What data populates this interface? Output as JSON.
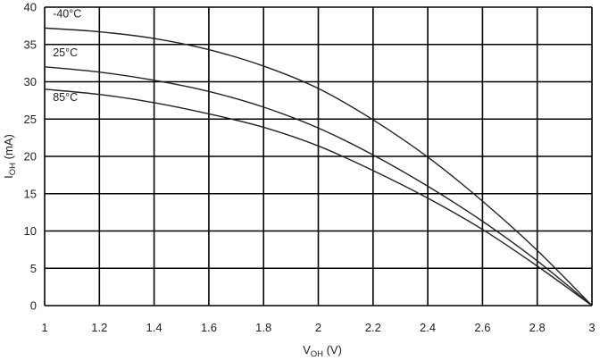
{
  "colors": {
    "grid": "#000000",
    "curve": "#222222",
    "text": "#222222",
    "background": "#ffffff"
  },
  "chart_data": {
    "type": "line",
    "xlabel": {
      "main": "V",
      "sub": "OH",
      "unit": " (V)"
    },
    "ylabel": {
      "main": "I",
      "sub": "OH",
      "unit": " (mA)"
    },
    "xlim": [
      1,
      3
    ],
    "ylim": [
      0,
      40
    ],
    "x_ticks": [
      1,
      1.2,
      1.4,
      1.6,
      1.8,
      2,
      2.2,
      2.4,
      2.6,
      2.8,
      3
    ],
    "x_tick_labels": [
      "1",
      "1.2",
      "1.4",
      "1.6",
      "1.8",
      "2",
      "2.2",
      "2.4",
      "2.6",
      "2.8",
      "3"
    ],
    "y_ticks": [
      0,
      5,
      10,
      15,
      20,
      25,
      30,
      35,
      40
    ],
    "y_tick_labels": [
      "0",
      "5",
      "10",
      "15",
      "20",
      "25",
      "30",
      "35",
      "40"
    ],
    "grid": true,
    "series": [
      {
        "name": "-40°C",
        "label_at": [
          1.03,
          38.6
        ],
        "x": [
          1.0,
          1.2,
          1.4,
          1.6,
          1.8,
          2.0,
          2.2,
          2.4,
          2.6,
          2.8,
          3.0
        ],
        "y": [
          37.2,
          36.7,
          35.8,
          34.3,
          32.1,
          29.1,
          24.9,
          19.9,
          14.0,
          7.4,
          0.0
        ]
      },
      {
        "name": "25°C",
        "label_at": [
          1.03,
          33.4
        ],
        "x": [
          1.0,
          1.2,
          1.4,
          1.6,
          1.8,
          2.0,
          2.2,
          2.4,
          2.6,
          2.8,
          3.0
        ],
        "y": [
          32.0,
          31.3,
          30.2,
          28.7,
          26.6,
          23.8,
          20.2,
          16.0,
          11.3,
          6.0,
          0.0
        ]
      },
      {
        "name": "85°C",
        "label_at": [
          1.03,
          27.4
        ],
        "x": [
          1.0,
          1.2,
          1.4,
          1.6,
          1.8,
          2.0,
          2.2,
          2.4,
          2.6,
          2.8,
          3.0
        ],
        "y": [
          29.0,
          28.3,
          27.2,
          25.7,
          23.9,
          21.4,
          18.1,
          14.4,
          10.2,
          5.3,
          0.0
        ]
      }
    ]
  }
}
